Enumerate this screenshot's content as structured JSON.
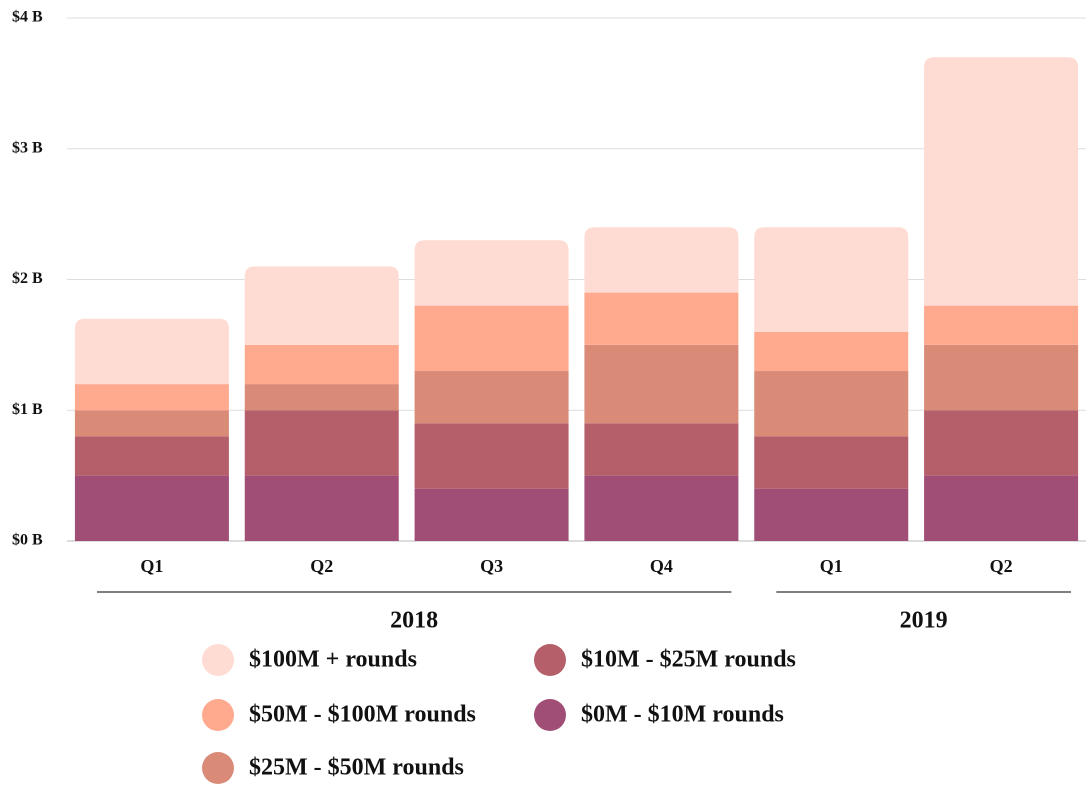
{
  "chart_data": {
    "type": "stacked_bar",
    "categories": [
      "Q1",
      "Q2",
      "Q3",
      "Q4",
      "Q1",
      "Q2"
    ],
    "groups": [
      {
        "label": "2018",
        "span": 4
      },
      {
        "label": "2019",
        "span": 2
      }
    ],
    "series": [
      {
        "name": "$0M - $10M rounds",
        "color": "#a14e76",
        "values": [
          0.5,
          0.5,
          0.4,
          0.5,
          0.4,
          0.5
        ]
      },
      {
        "name": "$10M - $25M rounds",
        "color": "#b55f6b",
        "values": [
          0.3,
          0.5,
          0.5,
          0.4,
          0.4,
          0.5
        ]
      },
      {
        "name": "$25M - $50M rounds",
        "color": "#d98b78",
        "values": [
          0.2,
          0.2,
          0.4,
          0.6,
          0.5,
          0.5
        ]
      },
      {
        "name": "$50M - $100M rounds",
        "color": "#ffa98f",
        "values": [
          0.2,
          0.3,
          0.5,
          0.4,
          0.3,
          0.3
        ]
      },
      {
        "name": "$100M + rounds",
        "color": "#ffdcd3",
        "values": [
          0.5,
          0.6,
          0.5,
          0.5,
          0.8,
          1.9
        ]
      }
    ],
    "ylim": [
      0,
      4
    ],
    "yticks": [
      {
        "value": 0,
        "label": "$0 B"
      },
      {
        "value": 1,
        "label": "$1 B"
      },
      {
        "value": 2,
        "label": "$2 B"
      },
      {
        "value": 3,
        "label": "$3 B"
      },
      {
        "value": 4,
        "label": "$4 B"
      }
    ],
    "grid": true
  }
}
